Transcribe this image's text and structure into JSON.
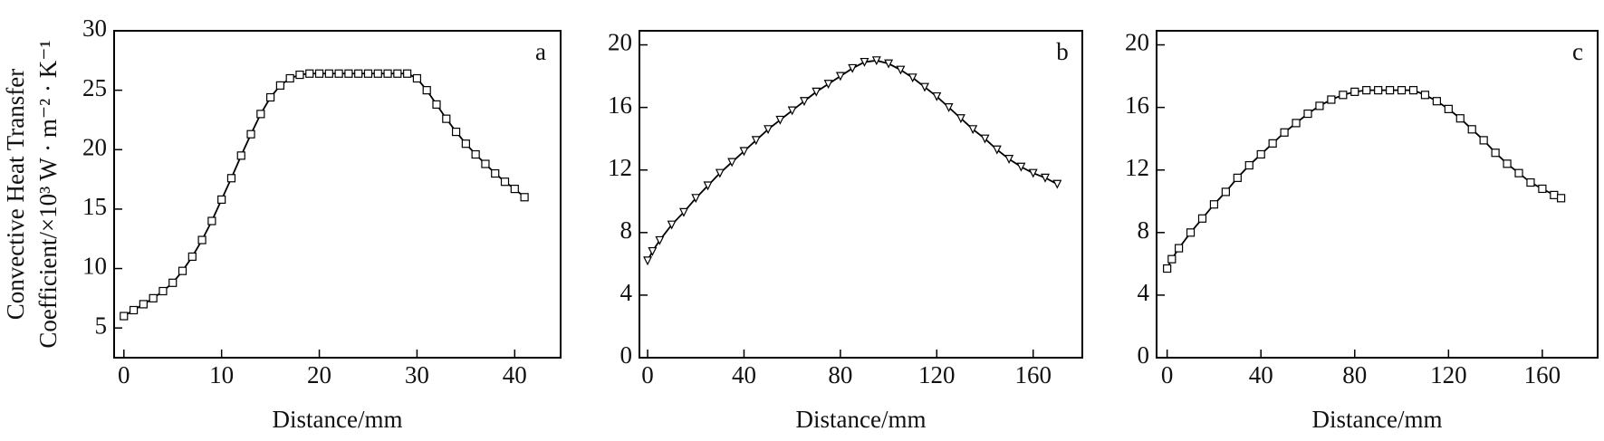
{
  "chart_data": [
    {
      "type": "line",
      "marker": "square",
      "color": "#000000",
      "annotation": "a",
      "xlabel": "Distance/mm",
      "ylabel": [
        "Convective Heat Transfer",
        "Coefficient/×10³ W · m⁻² · K⁻¹"
      ],
      "xlim": [
        -1,
        44.7
      ],
      "xticks": [
        0,
        10,
        20,
        30,
        40
      ],
      "ylim": [
        2.5,
        30
      ],
      "yticks": [
        5,
        10,
        15,
        20,
        25,
        30
      ],
      "x": [
        0,
        1,
        2,
        3,
        4,
        5,
        6,
        7,
        8,
        9,
        10,
        11,
        12,
        13,
        14,
        15,
        16,
        17,
        18,
        19,
        20,
        21,
        22,
        23,
        24,
        25,
        26,
        27,
        28,
        29,
        30,
        31,
        32,
        33,
        34,
        35,
        36,
        37,
        38,
        39,
        40,
        41
      ],
      "values": [
        6,
        6.5,
        7,
        7.5,
        8.1,
        8.8,
        9.8,
        11,
        12.4,
        14,
        15.8,
        17.6,
        19.5,
        21.3,
        23,
        24.4,
        25.4,
        26,
        26.3,
        26.4,
        26.4,
        26.4,
        26.4,
        26.4,
        26.4,
        26.4,
        26.4,
        26.4,
        26.4,
        26.4,
        26,
        25,
        23.8,
        22.6,
        21.5,
        20.5,
        19.6,
        18.8,
        18,
        17.3,
        16.7,
        16
      ]
    },
    {
      "type": "line",
      "marker": "triangle-down",
      "color": "#000000",
      "annotation": "b",
      "xlabel": "Distance/mm",
      "xlim": [
        -3.4,
        180.4
      ],
      "xticks": [
        0,
        40,
        80,
        120,
        160
      ],
      "ylim": [
        0,
        20.9
      ],
      "yticks": [
        0,
        4,
        8,
        12,
        16,
        20
      ],
      "x": [
        0,
        2,
        5,
        10,
        15,
        20,
        25,
        30,
        35,
        40,
        45,
        50,
        55,
        60,
        65,
        70,
        75,
        80,
        85,
        90,
        95,
        100,
        105,
        110,
        115,
        120,
        125,
        130,
        135,
        140,
        145,
        150,
        155,
        160,
        165,
        170
      ],
      "values": [
        6.2,
        6.8,
        7.5,
        8.5,
        9.3,
        10.2,
        11,
        11.8,
        12.5,
        13.2,
        13.9,
        14.6,
        15.2,
        15.8,
        16.4,
        17,
        17.5,
        18,
        18.5,
        18.9,
        19,
        18.8,
        18.4,
        17.9,
        17.3,
        16.7,
        16,
        15.3,
        14.6,
        14,
        13.3,
        12.7,
        12.2,
        11.8,
        11.5,
        11.1
      ]
    },
    {
      "type": "line",
      "marker": "square",
      "color": "#000000",
      "annotation": "c",
      "xlabel": "Distance/mm",
      "xlim": [
        -4.5,
        183.6
      ],
      "xticks": [
        0,
        40,
        80,
        120,
        160
      ],
      "ylim": [
        0,
        20.9
      ],
      "yticks": [
        0,
        4,
        8,
        12,
        16,
        20
      ],
      "x": [
        0,
        2,
        5,
        10,
        15,
        20,
        25,
        30,
        35,
        40,
        45,
        50,
        55,
        60,
        65,
        70,
        75,
        80,
        85,
        90,
        95,
        100,
        105,
        110,
        115,
        120,
        125,
        130,
        135,
        140,
        145,
        150,
        155,
        160,
        165,
        168
      ],
      "values": [
        5.7,
        6.3,
        7,
        8,
        8.9,
        9.8,
        10.6,
        11.5,
        12.3,
        13,
        13.7,
        14.4,
        15,
        15.6,
        16.1,
        16.5,
        16.8,
        17,
        17.1,
        17.1,
        17.1,
        17.1,
        17.1,
        16.8,
        16.4,
        15.9,
        15.3,
        14.6,
        13.9,
        13.1,
        12.4,
        11.8,
        11.2,
        10.8,
        10.4,
        10.2
      ]
    }
  ]
}
